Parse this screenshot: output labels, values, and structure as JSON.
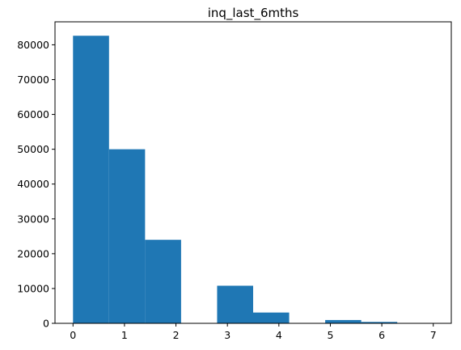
{
  "chart_data": {
    "type": "bar",
    "subtype": "histogram",
    "title": "inq_last_6mths",
    "xlabel": "",
    "ylabel": "",
    "bar_color": "#1f77b4",
    "xlim": [
      -0.35,
      7.35
    ],
    "ylim": [
      0,
      86600
    ],
    "x_ticks": [
      0,
      1,
      2,
      3,
      4,
      5,
      6,
      7
    ],
    "y_ticks": [
      0,
      10000,
      20000,
      30000,
      40000,
      50000,
      60000,
      70000,
      80000
    ],
    "bins": [
      {
        "start": 0.0,
        "end": 0.7,
        "count": 82600
      },
      {
        "start": 0.7,
        "end": 1.4,
        "count": 50000
      },
      {
        "start": 1.4,
        "end": 2.1,
        "count": 24000
      },
      {
        "start": 2.1,
        "end": 2.8,
        "count": 0
      },
      {
        "start": 2.8,
        "end": 3.5,
        "count": 10800
      },
      {
        "start": 3.5,
        "end": 4.2,
        "count": 3100
      },
      {
        "start": 4.2,
        "end": 4.9,
        "count": 0
      },
      {
        "start": 4.9,
        "end": 5.6,
        "count": 950
      },
      {
        "start": 5.6,
        "end": 6.3,
        "count": 400
      },
      {
        "start": 6.3,
        "end": 7.0,
        "count": 100
      }
    ],
    "grid": false,
    "legend": "none"
  }
}
